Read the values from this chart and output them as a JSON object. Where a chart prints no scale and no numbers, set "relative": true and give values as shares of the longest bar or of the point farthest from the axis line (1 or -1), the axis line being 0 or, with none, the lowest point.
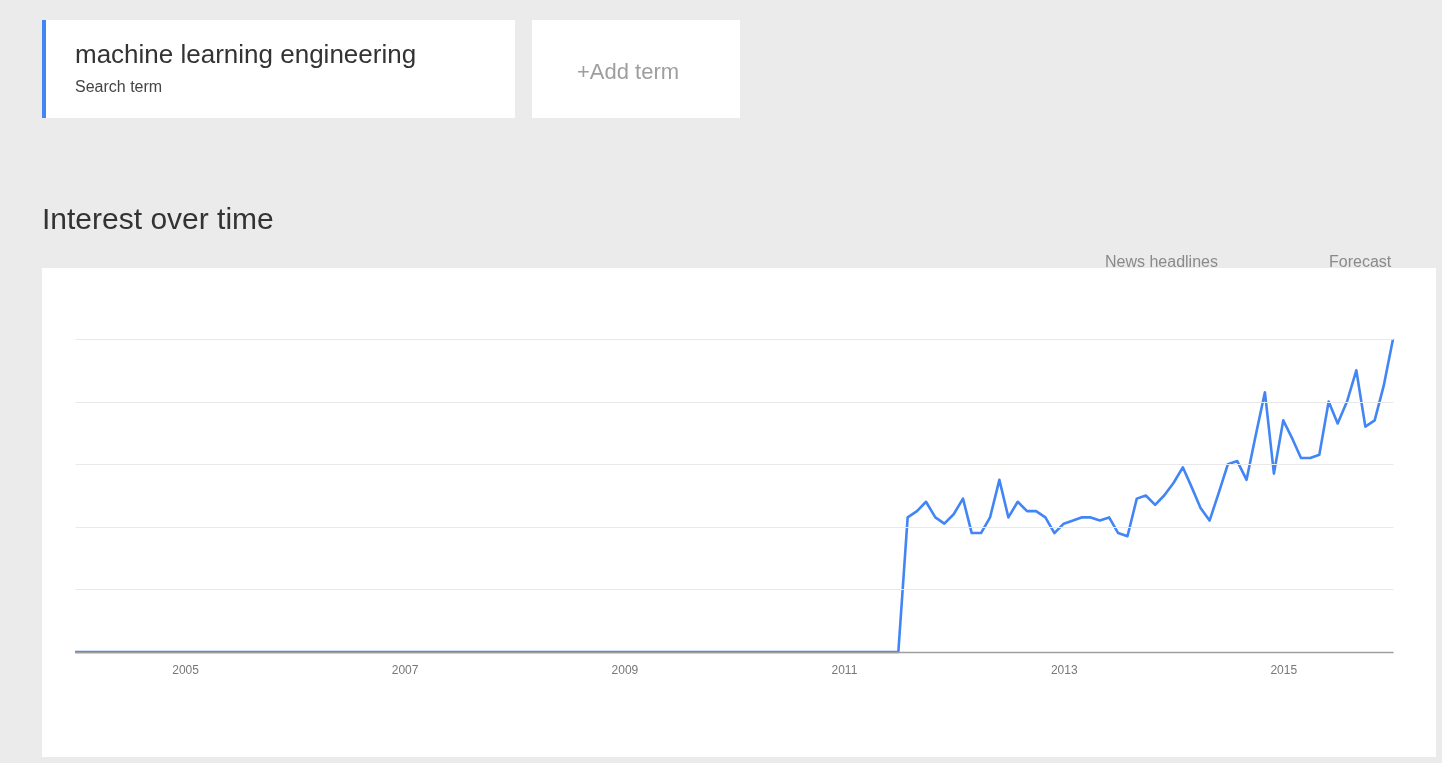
{
  "chart_data": {
    "type": "line",
    "title": "Interest over time",
    "relative": true,
    "legend": "top left",
    "grid": "y",
    "tick_labels": "x",
    "xlim": [
      "2004-01",
      "2016-01"
    ],
    "xticks": [
      {
        "value": "2005",
        "label": "2005"
      },
      {
        "value": "2007",
        "label": "2007"
      },
      {
        "value": "2009",
        "label": "2009"
      },
      {
        "value": "2011",
        "label": "2011"
      },
      {
        "value": "2013",
        "label": "2013"
      },
      {
        "value": "2015",
        "label": "2015"
      }
    ],
    "x": [
      "2004-01",
      "2011-07",
      "2011-08",
      "2011-09",
      "2011-10",
      "2011-11",
      "2011-12",
      "2012-01",
      "2012-02",
      "2012-03",
      "2012-04",
      "2012-05",
      "2012-06",
      "2012-07",
      "2012-08",
      "2012-09",
      "2012-10",
      "2012-11",
      "2012-12",
      "2013-01",
      "2013-02",
      "2013-03",
      "2013-04",
      "2013-05",
      "2013-06",
      "2013-07",
      "2013-08",
      "2013-09",
      "2013-10",
      "2013-11",
      "2013-12",
      "2014-01",
      "2014-02",
      "2014-03",
      "2014-04",
      "2014-05",
      "2014-06",
      "2014-07",
      "2014-08",
      "2014-09",
      "2014-10",
      "2014-11",
      "2014-12",
      "2015-01",
      "2015-02",
      "2015-03",
      "2015-04",
      "2015-05",
      "2015-06",
      "2015-07",
      "2015-08",
      "2015-09",
      "2015-10",
      "2015-11",
      "2015-12",
      "2016-01"
    ],
    "series": [
      {
        "name": "machine learning engineering",
        "color": "#4285f4",
        "values": [
          0,
          0,
          0.43,
          0.45,
          0.48,
          0.43,
          0.41,
          0.44,
          0.49,
          0.38,
          0.38,
          0.43,
          0.55,
          0.43,
          0.48,
          0.45,
          0.45,
          0.43,
          0.38,
          0.41,
          0.42,
          0.43,
          0.43,
          0.42,
          0.43,
          0.38,
          0.37,
          0.49,
          0.5,
          0.47,
          0.5,
          0.54,
          0.59,
          0.53,
          0.46,
          0.42,
          0.51,
          0.6,
          0.61,
          0.55,
          0.69,
          0.83,
          0.57,
          0.74,
          0.68,
          0.62,
          0.62,
          0.63,
          0.8,
          0.73,
          0.8,
          0.9,
          0.72,
          0.74,
          0.85,
          1.0
        ]
      }
    ],
    "annotations": [
      "Search term",
      "+Add term",
      "News headlines",
      "Forecast"
    ]
  }
}
